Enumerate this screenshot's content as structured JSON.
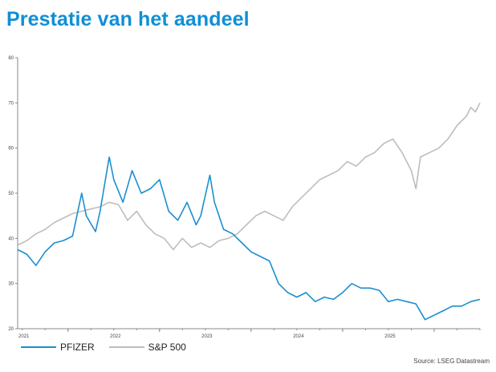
{
  "title": "Prestatie van het aandeel",
  "source": "Source: LSEG Datastream",
  "colors": {
    "title": "#0f8fd6",
    "pfizer": "#1a8fd0",
    "sp500": "#bdbdbd"
  },
  "chart_data": {
    "type": "line",
    "title": "Prestatie van het aandeel",
    "xlabel": "",
    "ylabel": "",
    "xlim": [
      2020.45,
      2025.5
    ],
    "ylim": [
      20,
      80
    ],
    "y_ticks": [
      20,
      30,
      40,
      50,
      60,
      70,
      80
    ],
    "x_ticks": [
      "2021",
      "2022",
      "2023",
      "2024",
      "2025"
    ],
    "x_tick_positions": [
      2021.0,
      2022.0,
      2023.0,
      2024.0,
      2025.0
    ],
    "grid": false,
    "legend_position": "bottom-left",
    "series": [
      {
        "name": "PFIZER",
        "color": "#1a8fd0",
        "x": [
          2020.45,
          2020.55,
          2020.65,
          2020.75,
          2020.85,
          2020.95,
          2021.05,
          2021.15,
          2021.2,
          2021.3,
          2021.35,
          2021.45,
          2021.5,
          2021.6,
          2021.7,
          2021.8,
          2021.9,
          2022.0,
          2022.1,
          2022.2,
          2022.3,
          2022.4,
          2022.45,
          2022.55,
          2022.6,
          2022.7,
          2022.8,
          2022.9,
          2023.0,
          2023.1,
          2023.2,
          2023.3,
          2023.4,
          2023.5,
          2023.6,
          2023.7,
          2023.8,
          2023.9,
          2024.0,
          2024.1,
          2024.2,
          2024.3,
          2024.4,
          2024.5,
          2024.6,
          2024.7,
          2024.8,
          2024.9,
          2025.0,
          2025.1,
          2025.2,
          2025.3,
          2025.4,
          2025.5
        ],
        "values": [
          37.5,
          36.5,
          34,
          37,
          39,
          39.5,
          40.5,
          50,
          45,
          41.5,
          46,
          58,
          53,
          48,
          55,
          50,
          51,
          53,
          46,
          44,
          48,
          43,
          45,
          54,
          48,
          42,
          41,
          39,
          37,
          36,
          35,
          30,
          28,
          27,
          28,
          26,
          27,
          26.5,
          28,
          30,
          29,
          29,
          28.5,
          26,
          26.5,
          26,
          25.5,
          22,
          23,
          24,
          25,
          25,
          26,
          26.5
        ]
      },
      {
        "name": "S&P 500",
        "color": "#bdbdbd",
        "x": [
          2020.45,
          2020.55,
          2020.65,
          2020.75,
          2020.85,
          2020.95,
          2021.05,
          2021.15,
          2021.25,
          2021.35,
          2021.45,
          2021.55,
          2021.65,
          2021.75,
          2021.85,
          2021.95,
          2022.05,
          2022.15,
          2022.25,
          2022.35,
          2022.45,
          2022.55,
          2022.65,
          2022.75,
          2022.85,
          2022.95,
          2023.05,
          2023.15,
          2023.25,
          2023.35,
          2023.45,
          2023.55,
          2023.65,
          2023.75,
          2023.85,
          2023.95,
          2024.05,
          2024.15,
          2024.25,
          2024.35,
          2024.45,
          2024.55,
          2024.65,
          2024.75,
          2024.8,
          2024.85,
          2024.95,
          2025.05,
          2025.15,
          2025.25,
          2025.35,
          2025.4,
          2025.45,
          2025.5
        ],
        "values": [
          38.5,
          39.5,
          41,
          42,
          43.5,
          44.5,
          45.5,
          46,
          46.5,
          47,
          48,
          47.5,
          44,
          46,
          43,
          41,
          40,
          37.5,
          40,
          38,
          39,
          38,
          39.5,
          40,
          41,
          43,
          45,
          46,
          45,
          44,
          47,
          49,
          51,
          53,
          54,
          55,
          57,
          56,
          58,
          59,
          61,
          62,
          59,
          55,
          51,
          58,
          59,
          60,
          62,
          65,
          67,
          69,
          68,
          70
        ]
      }
    ]
  }
}
